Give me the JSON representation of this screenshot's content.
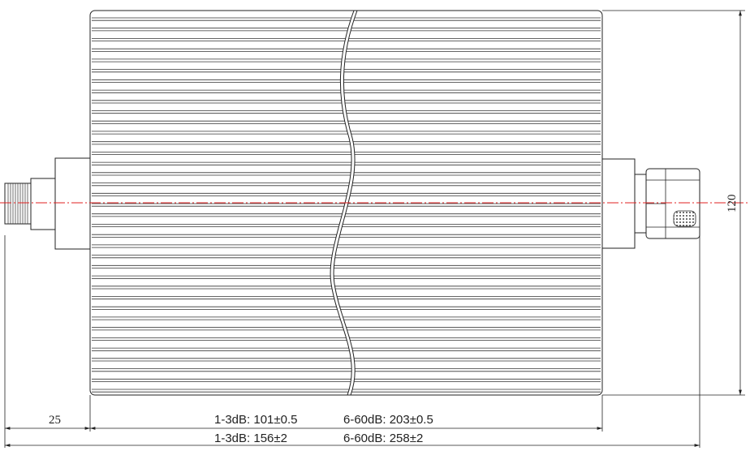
{
  "drawing": {
    "type": "attenuator-outline",
    "body": {
      "fin_count": 37,
      "break_symbol": "wavy-break"
    },
    "connectors": {
      "left": "n-female-connector",
      "right": "n-male-connector"
    },
    "colors": {
      "line": "#222222",
      "centerline": "#e02020",
      "background": "#ffffff"
    }
  },
  "dimensions": {
    "left_offset": "25",
    "height": "120",
    "body_length": {
      "low_label": "1-3dB: 101±0.5",
      "high_label": "6-60dB: 203±0.5"
    },
    "overall_length": {
      "low_label": "1-3dB: 156±2",
      "high_label": "6-60dB: 258±2"
    }
  }
}
